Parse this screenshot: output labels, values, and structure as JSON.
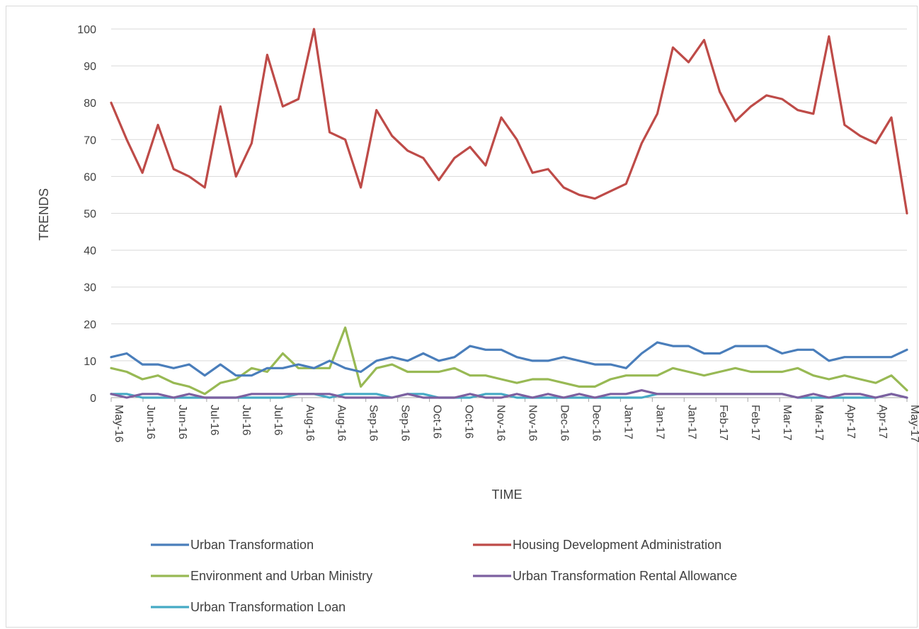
{
  "chart_data": {
    "type": "line",
    "title": "",
    "xlabel": "TIME",
    "ylabel": "TRENDS",
    "ylim": [
      0,
      100
    ],
    "yticks": [
      0,
      10,
      20,
      30,
      40,
      50,
      60,
      70,
      80,
      90,
      100
    ],
    "grid": "horizontal",
    "legend_position": "bottom",
    "x_tick_labels": [
      "May-16",
      "Jun-16",
      "Jun-16",
      "Jul-16",
      "Jul-16",
      "Jul-16",
      "Aug-16",
      "Aug-16",
      "Sep-16",
      "Sep-16",
      "Oct-16",
      "Oct-16",
      "Nov-16",
      "Nov-16",
      "Dec-16",
      "Dec-16",
      "Jan-17",
      "Jan-17",
      "Jan-17",
      "Feb-17",
      "Feb-17",
      "Mar-17",
      "Mar-17",
      "Apr-17",
      "Apr-17",
      "May-17"
    ],
    "series": [
      {
        "name": "Urban Transformation",
        "color": "#4a7ebb",
        "values": [
          11,
          12,
          9,
          9,
          8,
          9,
          6,
          9,
          6,
          6,
          8,
          8,
          9,
          8,
          10,
          8,
          7,
          10,
          11,
          10,
          12,
          10,
          11,
          14,
          13,
          13,
          11,
          10,
          10,
          11,
          10,
          9,
          9,
          8,
          12,
          15,
          14,
          14,
          12,
          12,
          14,
          14,
          14,
          12,
          13,
          13,
          10,
          11,
          11,
          11,
          11,
          13
        ]
      },
      {
        "name": "Housing Development Administration",
        "color": "#be4b48",
        "values": [
          80,
          70,
          61,
          74,
          62,
          60,
          57,
          79,
          60,
          69,
          93,
          79,
          81,
          100,
          72,
          70,
          57,
          78,
          71,
          67,
          65,
          59,
          65,
          68,
          63,
          76,
          70,
          61,
          62,
          57,
          55,
          54,
          56,
          58,
          69,
          77,
          95,
          91,
          97,
          83,
          75,
          79,
          82,
          81,
          78,
          77,
          98,
          74,
          71,
          69,
          76,
          50
        ]
      },
      {
        "name": "Environment and Urban Ministry",
        "color": "#98b954",
        "values": [
          8,
          7,
          5,
          6,
          4,
          3,
          1,
          4,
          5,
          8,
          7,
          12,
          8,
          8,
          8,
          19,
          3,
          8,
          9,
          7,
          7,
          7,
          8,
          6,
          6,
          5,
          4,
          5,
          5,
          4,
          3,
          3,
          5,
          6,
          6,
          6,
          8,
          7,
          6,
          7,
          8,
          7,
          7,
          7,
          8,
          6,
          5,
          6,
          5,
          4,
          6,
          2
        ]
      },
      {
        "name": "Urban Transformation Rental Allowance",
        "color": "#7d60a0",
        "values": [
          1,
          0,
          1,
          1,
          0,
          1,
          0,
          0,
          0,
          1,
          1,
          1,
          1,
          1,
          1,
          0,
          0,
          0,
          0,
          1,
          0,
          0,
          0,
          1,
          0,
          0,
          1,
          0,
          1,
          0,
          1,
          0,
          1,
          1,
          2,
          1,
          1,
          1,
          1,
          1,
          1,
          1,
          1,
          1,
          0,
          1,
          0,
          1,
          1,
          0,
          1,
          0
        ]
      },
      {
        "name": "Urban Transformation Loan",
        "color": "#46aac5",
        "values": [
          1,
          1,
          0,
          0,
          0,
          0,
          0,
          0,
          0,
          0,
          0,
          0,
          1,
          1,
          0,
          1,
          1,
          1,
          0,
          1,
          1,
          0,
          0,
          0,
          1,
          1,
          0,
          0,
          0,
          0,
          0,
          0,
          0,
          0,
          0,
          1,
          1,
          1,
          1,
          1,
          1,
          1,
          1,
          1,
          0,
          0,
          0,
          0,
          0,
          0,
          1,
          0
        ]
      }
    ]
  }
}
